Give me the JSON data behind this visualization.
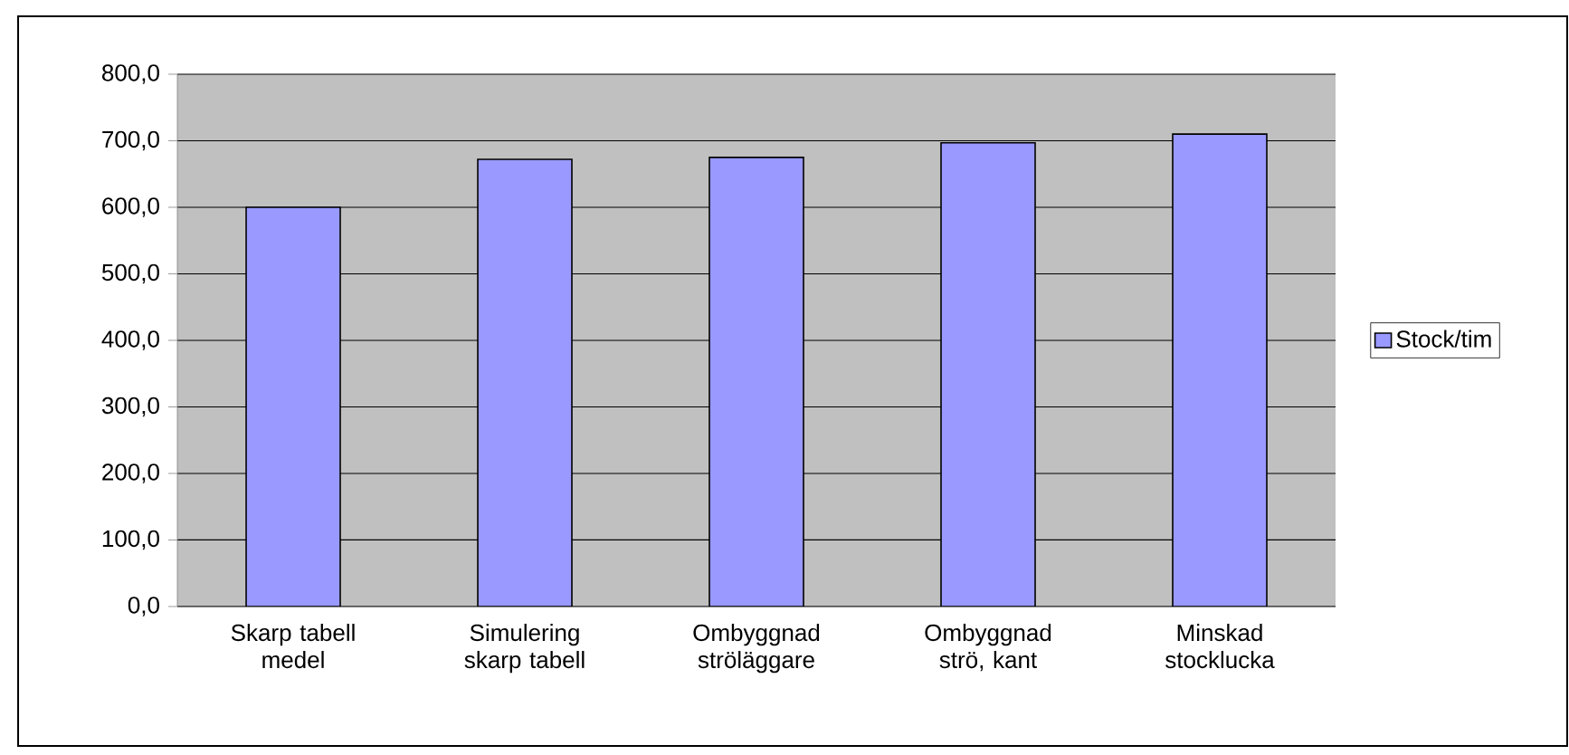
{
  "chart_data": {
    "type": "bar",
    "categories": [
      "Skarp tabell medel",
      "Simulering skarp tabell",
      "Ombyggnad ströläggare",
      "Ombyggnad strö, kant",
      "Minskad stocklucka"
    ],
    "series": [
      {
        "name": "Stock/tim",
        "color": "#9999ff",
        "values": [
          600,
          672,
          675,
          697,
          710
        ]
      }
    ],
    "ylim": [
      0,
      800
    ],
    "yticks": [
      {
        "value": 0,
        "label": "0,0"
      },
      {
        "value": 100,
        "label": "100,0"
      },
      {
        "value": 200,
        "label": "200,0"
      },
      {
        "value": 300,
        "label": "300,0"
      },
      {
        "value": 400,
        "label": "400,0"
      },
      {
        "value": 500,
        "label": "500,0"
      },
      {
        "value": 600,
        "label": "600,0"
      },
      {
        "value": 700,
        "label": "700,0"
      },
      {
        "value": 800,
        "label": "800,0"
      }
    ],
    "grid": "y",
    "legend": "right"
  }
}
